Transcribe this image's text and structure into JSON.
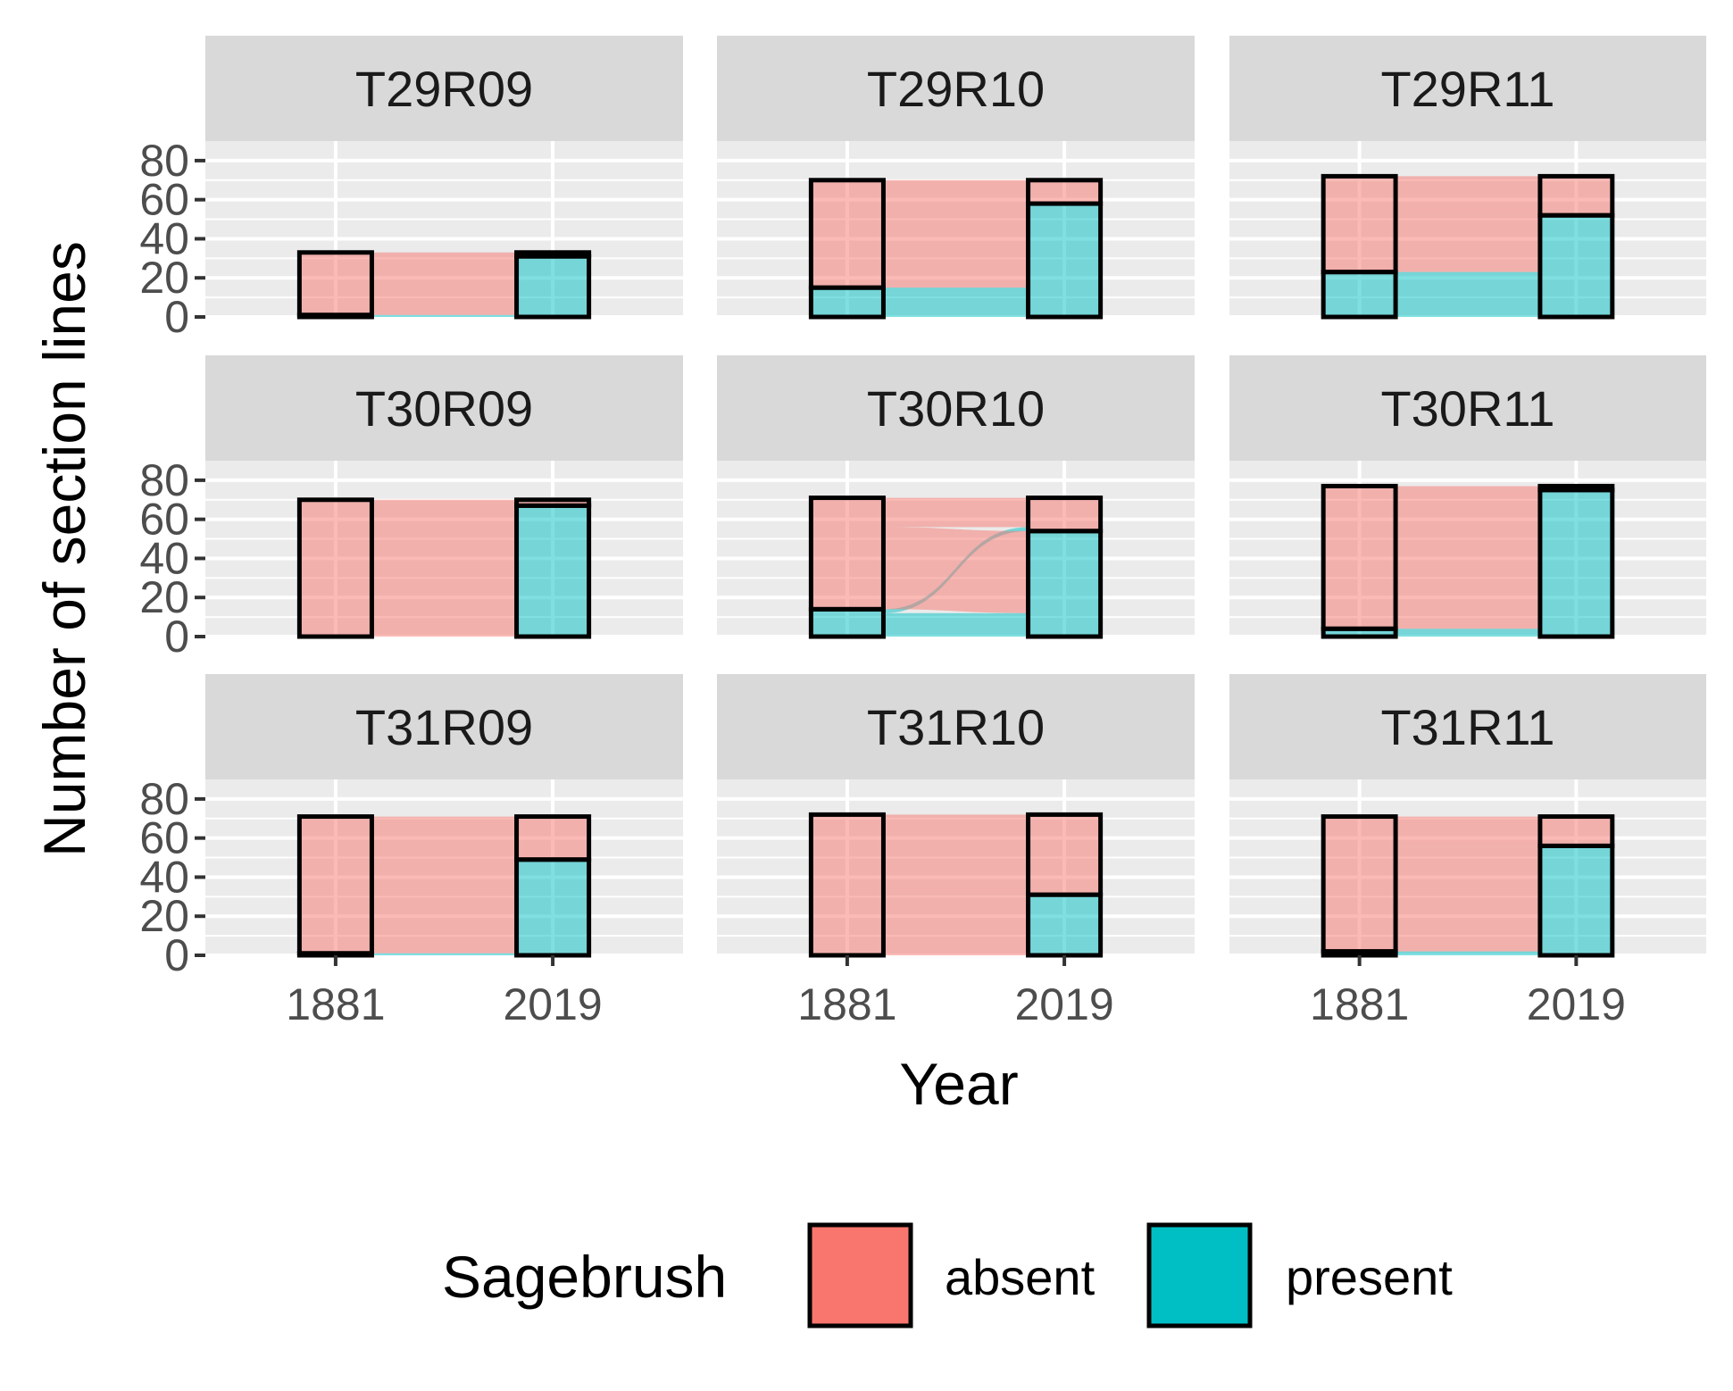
{
  "chart_data": {
    "type": "alluvial-facet",
    "xlabel": "Year",
    "ylabel": "Number of section lines",
    "x_categories": [
      "1881",
      "2019"
    ],
    "y_ticks": [
      0,
      20,
      40,
      60,
      80
    ],
    "ylim": [
      0,
      90
    ],
    "legend": {
      "title": "Sagebrush",
      "placement": "bottom",
      "entries": [
        {
          "label": "absent",
          "color": "#F8766D"
        },
        {
          "label": "present",
          "color": "#00BFC4"
        }
      ]
    },
    "panels": [
      {
        "label": "T29R09",
        "bars": [
          {
            "year": "1881",
            "present": 1,
            "absent": 32
          },
          {
            "year": "2019",
            "present": 31,
            "absent": 2
          }
        ],
        "flows": {
          "present_to_present": 1,
          "present_to_absent": 0,
          "absent_to_present": 30,
          "absent_to_absent": 2
        }
      },
      {
        "label": "T29R10",
        "bars": [
          {
            "year": "1881",
            "present": 15,
            "absent": 55
          },
          {
            "year": "2019",
            "present": 58,
            "absent": 12
          }
        ],
        "flows": {
          "present_to_present": 15,
          "present_to_absent": 0,
          "absent_to_present": 43,
          "absent_to_absent": 12
        }
      },
      {
        "label": "T29R11",
        "bars": [
          {
            "year": "1881",
            "present": 23,
            "absent": 49
          },
          {
            "year": "2019",
            "present": 52,
            "absent": 20
          }
        ],
        "flows": {
          "present_to_present": 23,
          "present_to_absent": 0,
          "absent_to_present": 29,
          "absent_to_absent": 20
        }
      },
      {
        "label": "T30R09",
        "bars": [
          {
            "year": "1881",
            "present": 0,
            "absent": 70
          },
          {
            "year": "2019",
            "present": 67,
            "absent": 3
          }
        ],
        "flows": {
          "present_to_present": 0,
          "present_to_absent": 0,
          "absent_to_present": 67,
          "absent_to_absent": 3
        }
      },
      {
        "label": "T30R10",
        "bars": [
          {
            "year": "1881",
            "present": 14,
            "absent": 57
          },
          {
            "year": "2019",
            "present": 54,
            "absent": 17
          }
        ],
        "flows": {
          "present_to_present": 12,
          "present_to_absent": 2,
          "absent_to_present": 42,
          "absent_to_absent": 15
        }
      },
      {
        "label": "T30R11",
        "bars": [
          {
            "year": "1881",
            "present": 4,
            "absent": 73
          },
          {
            "year": "2019",
            "present": 75,
            "absent": 2
          }
        ],
        "flows": {
          "present_to_present": 4,
          "present_to_absent": 0,
          "absent_to_present": 71,
          "absent_to_absent": 2
        }
      },
      {
        "label": "T31R09",
        "bars": [
          {
            "year": "1881",
            "present": 1,
            "absent": 70
          },
          {
            "year": "2019",
            "present": 49,
            "absent": 22
          }
        ],
        "flows": {
          "present_to_present": 1,
          "present_to_absent": 0,
          "absent_to_present": 48,
          "absent_to_absent": 22
        }
      },
      {
        "label": "T31R10",
        "bars": [
          {
            "year": "1881",
            "present": 0,
            "absent": 72
          },
          {
            "year": "2019",
            "present": 31,
            "absent": 41
          }
        ],
        "flows": {
          "present_to_present": 0,
          "present_to_absent": 0,
          "absent_to_present": 31,
          "absent_to_absent": 41
        }
      },
      {
        "label": "T31R11",
        "bars": [
          {
            "year": "1881",
            "present": 2,
            "absent": 69
          },
          {
            "year": "2019",
            "present": 56,
            "absent": 15
          }
        ],
        "flows": {
          "present_to_present": 2,
          "present_to_absent": 0,
          "absent_to_present": 54,
          "absent_to_absent": 15
        }
      }
    ]
  }
}
